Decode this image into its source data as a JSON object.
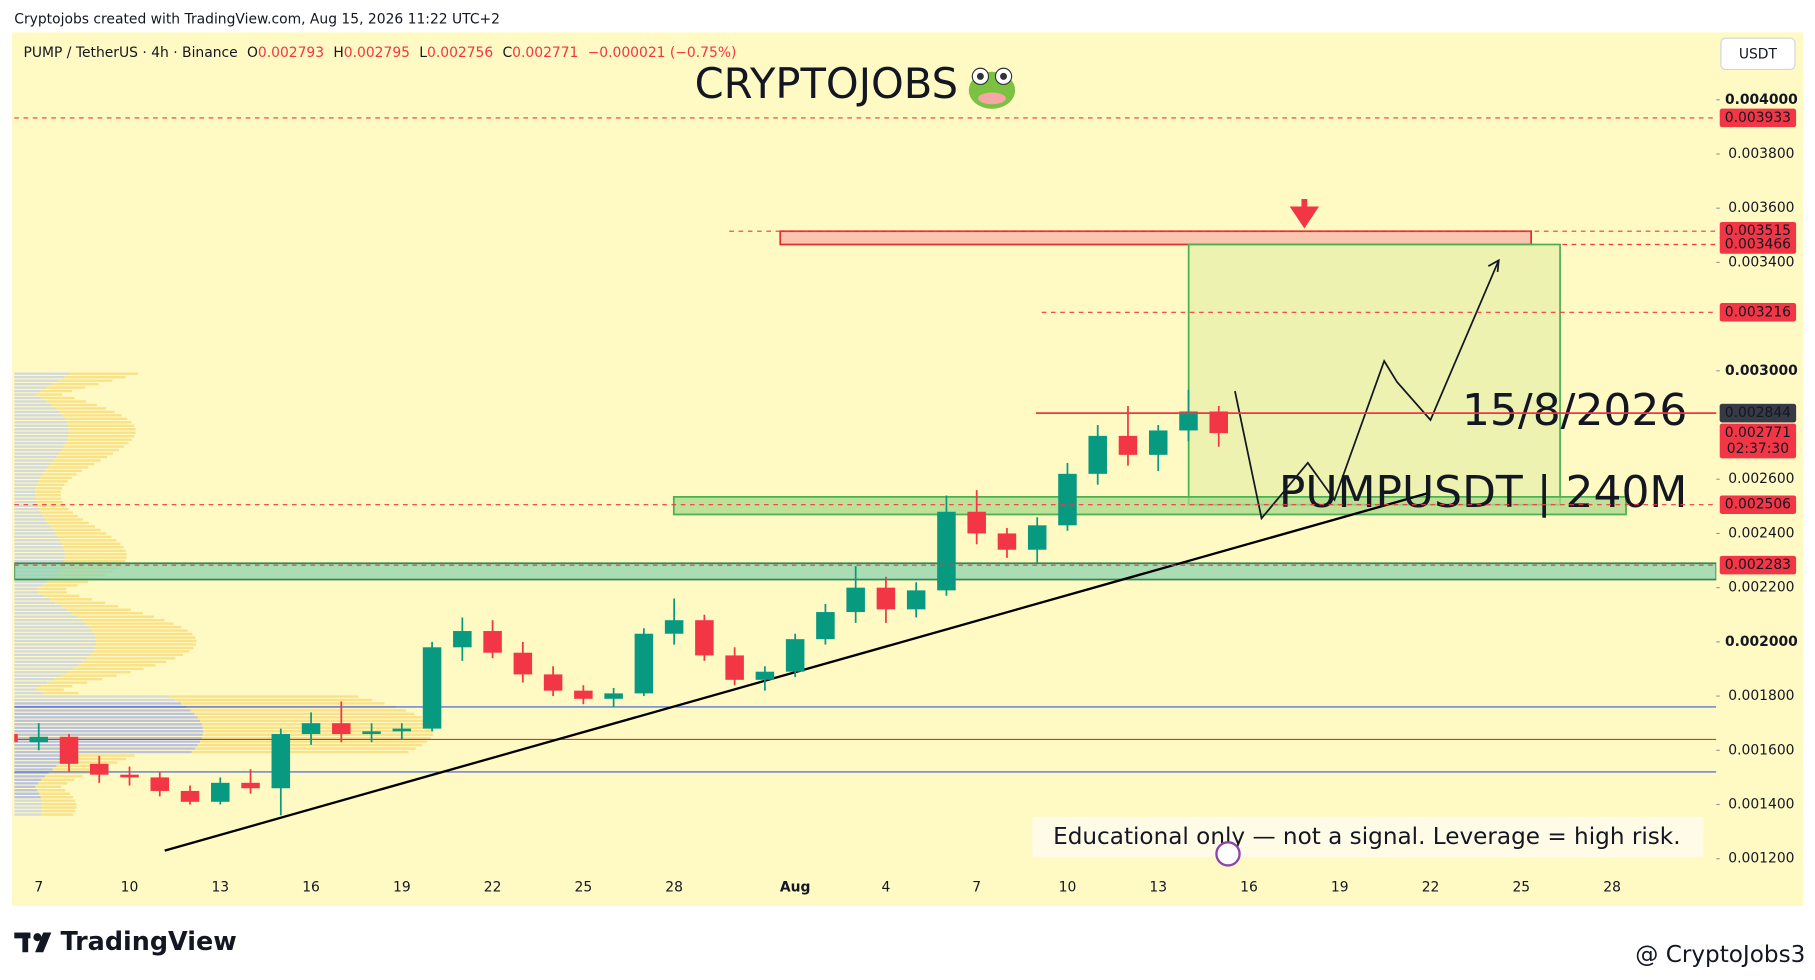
{
  "header": {
    "attribution": "Cryptojobs created with TradingView.com, Aug 15, 2026 11:22 UTC+2",
    "currency_button": "USDT"
  },
  "chart_data": {
    "type": "candlestick",
    "symbol": "PUMP / TetherUS · 4h · Binance",
    "ohlc_legend": [
      {
        "label": "O",
        "value": "0.002793"
      },
      {
        "label": "H",
        "value": "0.002795"
      },
      {
        "label": "L",
        "value": "0.002756"
      },
      {
        "label": "C",
        "value": "0.002771"
      }
    ],
    "change": "−0.000021 (−0.75%)",
    "title": "CRYPTOJOBS",
    "watermark_date": "15/8/2026",
    "watermark_symbol": "PUMPUSDT | 240M",
    "note": "Educational only — not a signal. Leverage  = high risk.",
    "categories": [
      null,
      "7",
      null,
      null,
      "10",
      null,
      null,
      "13",
      null,
      null,
      "16",
      null,
      null,
      "19",
      null,
      null,
      "22",
      null,
      null,
      "25",
      null,
      null,
      "28",
      null,
      null,
      null,
      "Aug",
      null,
      null,
      "4",
      null,
      null,
      "7",
      null,
      null,
      "10",
      null,
      null,
      "13",
      null,
      null,
      "16",
      null,
      null,
      "19",
      null,
      null,
      "22",
      null,
      null,
      "25",
      null,
      null,
      "28",
      null,
      null
    ],
    "up_color": "#089981",
    "down_color": "#f23645",
    "open": [
      0.00166,
      0.00163,
      0.00165,
      0.00155,
      0.00151,
      0.0015,
      0.00145,
      0.00141,
      0.00148,
      0.00146,
      0.00166,
      0.0017,
      0.00166,
      0.00167,
      0.00168,
      0.00198,
      0.00204,
      0.00196,
      0.00188,
      0.00182,
      0.00179,
      0.00181,
      0.00203,
      0.00208,
      0.00195,
      0.00186,
      0.00189,
      0.00201,
      0.00211,
      0.0022,
      0.00212,
      0.00219,
      0.00248,
      0.0024,
      0.00234,
      0.00243,
      0.00262,
      0.00276,
      0.00269,
      0.00278,
      0.00285,
      null,
      null,
      null,
      null,
      null,
      null,
      null,
      null,
      null,
      null,
      null,
      null,
      null,
      null,
      null
    ],
    "high": [
      0.0017,
      0.0017,
      0.00166,
      0.00158,
      0.00154,
      0.00152,
      0.00147,
      0.0015,
      0.00153,
      0.00168,
      0.00174,
      0.00178,
      0.0017,
      0.0017,
      0.002,
      0.00209,
      0.00208,
      0.002,
      0.00191,
      0.00184,
      0.00183,
      0.00205,
      0.00216,
      0.0021,
      0.00198,
      0.00191,
      0.00203,
      0.00214,
      0.00228,
      0.00224,
      0.00222,
      0.00254,
      0.00256,
      0.00242,
      0.00246,
      0.00266,
      0.0028,
      0.00287,
      0.0028,
      0.00293,
      0.00287,
      null,
      null,
      null,
      null,
      null,
      null,
      null,
      null,
      null,
      null,
      null,
      null,
      null,
      null,
      null
    ],
    "low": [
      0.00158,
      0.0016,
      0.00152,
      0.00148,
      0.00147,
      0.00143,
      0.0014,
      0.0014,
      0.00144,
      0.00136,
      0.00162,
      0.00163,
      0.00163,
      0.00164,
      0.00167,
      0.00193,
      0.00194,
      0.00185,
      0.0018,
      0.00177,
      0.00176,
      0.0018,
      0.00199,
      0.00193,
      0.00184,
      0.00182,
      0.00187,
      0.00199,
      0.00207,
      0.00207,
      0.00209,
      0.00217,
      0.00236,
      0.00231,
      0.00229,
      0.00241,
      0.00258,
      0.00265,
      0.00263,
      0.00274,
      0.00272,
      null,
      null,
      null,
      null,
      null,
      null,
      null,
      null,
      null,
      null,
      null,
      null,
      null,
      null,
      null
    ],
    "close": [
      0.00163,
      0.00165,
      0.00155,
      0.00151,
      0.0015,
      0.00145,
      0.00141,
      0.00148,
      0.00146,
      0.00166,
      0.0017,
      0.00166,
      0.00167,
      0.00168,
      0.00198,
      0.00204,
      0.00196,
      0.00188,
      0.00182,
      0.00179,
      0.00181,
      0.00203,
      0.00208,
      0.00195,
      0.00186,
      0.00189,
      0.00201,
      0.00211,
      0.0022,
      0.00212,
      0.00219,
      0.00248,
      0.0024,
      0.00234,
      0.00243,
      0.00262,
      0.00276,
      0.00269,
      0.00278,
      0.00285,
      0.00277,
      null,
      null,
      null,
      null,
      null,
      null,
      null,
      null,
      null,
      null,
      null,
      null,
      null,
      null,
      null
    ],
    "ylim": [
      0.00103,
      0.00424
    ],
    "yticks": [
      {
        "value": 0.0012,
        "label": "0.001200"
      },
      {
        "value": 0.0014,
        "label": "0.001400"
      },
      {
        "value": 0.0016,
        "label": "0.001600"
      },
      {
        "value": 0.0018,
        "label": "0.001800"
      },
      {
        "value": 0.002,
        "label": "0.002000"
      },
      {
        "value": 0.0022,
        "label": "0.002200"
      },
      {
        "value": 0.0024,
        "label": "0.002400"
      },
      {
        "value": 0.0026,
        "label": "0.002600"
      },
      {
        "value": 0.003,
        "label": "0.003000"
      },
      {
        "value": 0.0034,
        "label": "0.003400"
      },
      {
        "value": 0.0036,
        "label": "0.003600"
      },
      {
        "value": 0.0038,
        "label": "0.003800"
      },
      {
        "value": 0.004,
        "label": "0.004000"
      }
    ],
    "price_labels": [
      {
        "value": 0.003933,
        "label": "0.003933",
        "color": "#f23645",
        "line": "dashed"
      },
      {
        "value": 0.003515,
        "label": "0.003515",
        "color": "#f23645",
        "line": "dashed"
      },
      {
        "value": 0.003466,
        "label": "0.003466",
        "color": "#f23645",
        "line": "dashed"
      },
      {
        "value": 0.003216,
        "label": "0.003216",
        "color": "#f23645",
        "line": "dashed"
      },
      {
        "value": 0.002844,
        "label": "0.002844",
        "color": "#f23645",
        "line": "solid"
      },
      {
        "value": 0.002844,
        "label": "0.002844",
        "color": "#363a45",
        "line": "none"
      },
      {
        "value": 0.002771,
        "label": "0.002771",
        "color": "#f23645",
        "line": "none",
        "countdown": "02:37:30"
      },
      {
        "value": 0.002506,
        "label": "0.002506",
        "color": "#f23645",
        "line": "dashed"
      },
      {
        "value": 0.002283,
        "label": "0.002283",
        "color": "#f23645",
        "line": "dashed"
      }
    ],
    "horizontal_lines": [
      {
        "value": 0.00176,
        "color": "#3b5bdb"
      },
      {
        "value": 0.00164,
        "color": "#e03131"
      },
      {
        "value": 0.00152,
        "color": "#3b5bdb"
      }
    ],
    "zones": [
      {
        "low": 0.003466,
        "high": 0.003515,
        "color": "#f8b4a8",
        "border": "#e03131"
      },
      {
        "low": 0.002506,
        "high": 0.003466,
        "color": "#e6efaa",
        "border": "#4caf50"
      },
      {
        "low": 0.00247,
        "high": 0.002535,
        "color": "#a8d88a",
        "border": "#4caf50"
      },
      {
        "low": 0.00223,
        "high": 0.00229,
        "color": "#8fd3b0",
        "border": "#2e8b57"
      }
    ],
    "trendline": {
      "start": 0.00123,
      "end": 0.00255,
      "color": "#000000"
    }
  },
  "footer": {
    "brand": "TradingView",
    "watermark": "@ CryptoJobs3"
  }
}
